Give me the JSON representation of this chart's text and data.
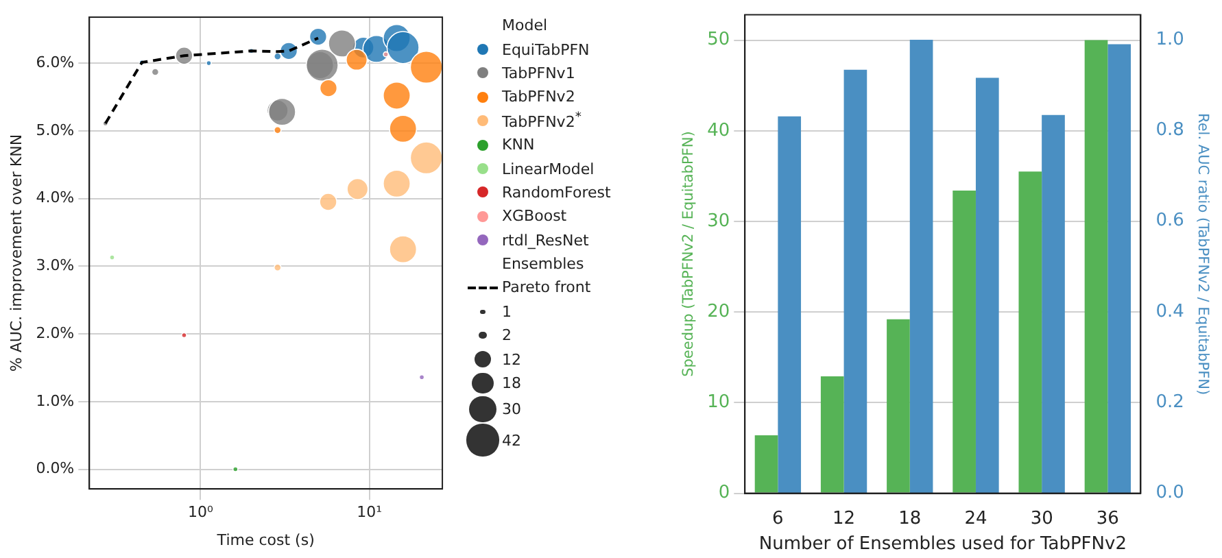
{
  "chart_data": [
    {
      "type": "bubble",
      "xlabel": "Time cost (s)",
      "ylabel": "% AUC. improvement over KNN",
      "log": "x",
      "grid": true,
      "legend": "right",
      "legend_title": "Model",
      "xlim": [
        0.22,
        27
      ],
      "xticks": [
        {
          "value": 1,
          "label": "10⁰"
        },
        {
          "value": 10,
          "label": "10¹"
        }
      ],
      "ylim": [
        -0.29,
        6.68
      ],
      "yticks": [
        {
          "value": 0,
          "label": "0.0%"
        },
        {
          "value": 1,
          "label": "1.0%"
        },
        {
          "value": 2,
          "label": "2.0%"
        },
        {
          "value": 3,
          "label": "3.0%"
        },
        {
          "value": 4,
          "label": "4.0%"
        },
        {
          "value": 5,
          "label": "5.0%"
        },
        {
          "value": 6,
          "label": "6.0%"
        }
      ],
      "size_legend": [
        1,
        2,
        12,
        18,
        30,
        42
      ],
      "annotations": [
        "Ensembles"
      ],
      "series": [
        {
          "name": "EquiTabPFN",
          "color": "#1f77b4",
          "x": [
            0.45,
            1.12,
            2.0,
            2.86,
            3.33,
            4.97,
            9.2,
            11,
            14.5,
            15.8
          ],
          "values": [
            6.01,
            6.0,
            6.18,
            6.1,
            6.18,
            6.39,
            6.23,
            6.21,
            6.37,
            6.23
          ],
          "sizes": [
            1,
            1,
            1,
            2,
            12,
            12,
            18,
            30,
            30,
            42
          ]
        },
        {
          "name": "TabPFNv1",
          "color": "#7f7f7f",
          "x": [
            0.274,
            0.54,
            0.8,
            2.86,
            3.04,
            5.1,
            5.25,
            6.88
          ],
          "values": [
            5.11,
            5.87,
            6.11,
            5.3,
            5.28,
            5.97,
            5.97,
            6.29
          ],
          "sizes": [
            1,
            2,
            12,
            18,
            30,
            30,
            42,
            30
          ]
        },
        {
          "name": "TabPFNv2",
          "color": "#ff7f0e",
          "x": [
            2.86,
            5.72,
            8.4,
            14.5,
            15.8,
            21.7
          ],
          "values": [
            5.01,
            5.63,
            6.05,
            5.52,
            5.03,
            5.94
          ],
          "sizes": [
            2,
            12,
            18,
            30,
            30,
            42
          ]
        },
        {
          "name": "TabPFNv2$^{*}$",
          "color": "#ffbb78",
          "x": [
            2.86,
            5.7,
            8.5,
            14.5,
            15.8,
            21.7
          ],
          "values": [
            2.98,
            3.95,
            4.14,
            4.22,
            3.25,
            4.6
          ],
          "sizes": [
            2,
            12,
            18,
            30,
            30,
            42
          ]
        },
        {
          "name": "KNN",
          "color": "#2ca02c",
          "x": [
            1.61
          ],
          "values": [
            0.0
          ],
          "sizes": [
            1
          ]
        },
        {
          "name": "LinearModel",
          "color": "#98df8a",
          "x": [
            0.3
          ],
          "values": [
            3.13
          ],
          "sizes": [
            1
          ]
        },
        {
          "name": "RandomForest",
          "color": "#d62728",
          "x": [
            0.8
          ],
          "values": [
            1.98
          ],
          "sizes": [
            1
          ]
        },
        {
          "name": "XGBoost",
          "color": "#ff9896",
          "x": [
            12.5
          ],
          "values": [
            6.13
          ],
          "sizes": [
            1
          ]
        },
        {
          "name": "rtdl_ResNet",
          "color": "#9467bd",
          "x": [
            20.4
          ],
          "values": [
            1.36
          ],
          "sizes": [
            1
          ]
        },
        {
          "name": "Pareto front",
          "type": "line",
          "color": "#000000",
          "line_style": "dashed",
          "marker": "none",
          "x": [
            0.274,
            0.45,
            0.8,
            2.0,
            2.86,
            3.33,
            4.97
          ],
          "values": [
            5.11,
            6.01,
            6.11,
            6.18,
            6.17,
            6.18,
            6.37
          ]
        }
      ]
    },
    {
      "type": "bar",
      "xlabel": "Number of Ensembles used for TabPFNv2",
      "ylabel": "Speedup (TabPFNv2 / EquitabPFN)",
      "y2label": "Rel. AUC ratio (TabPFNv2 / EquitabPFN)",
      "grid": "y",
      "categories": [
        "6",
        "12",
        "18",
        "24",
        "30",
        "36"
      ],
      "ylim": [
        0,
        52.8
      ],
      "yticks": [
        0,
        10,
        20,
        30,
        40,
        50
      ],
      "y2lim": [
        0,
        1.055
      ],
      "y2ticks": [
        {
          "value": 0,
          "label": "0.0"
        },
        {
          "value": 0.2,
          "label": "0.2"
        },
        {
          "value": 0.4,
          "label": "0.4"
        },
        {
          "value": 0.6,
          "label": "0.6"
        },
        {
          "value": 0.8,
          "label": "0.8"
        },
        {
          "value": 1,
          "label": "1.0"
        }
      ],
      "series": [
        {
          "color": "#56b356",
          "values": [
            6.4,
            12.9,
            19.2,
            33.4,
            35.5,
            50.0
          ]
        },
        {
          "color": "#4a8fc2",
          "axis": "y2",
          "values": [
            0.831,
            0.934,
            1.0,
            0.916,
            0.834,
            0.99
          ]
        }
      ]
    }
  ]
}
